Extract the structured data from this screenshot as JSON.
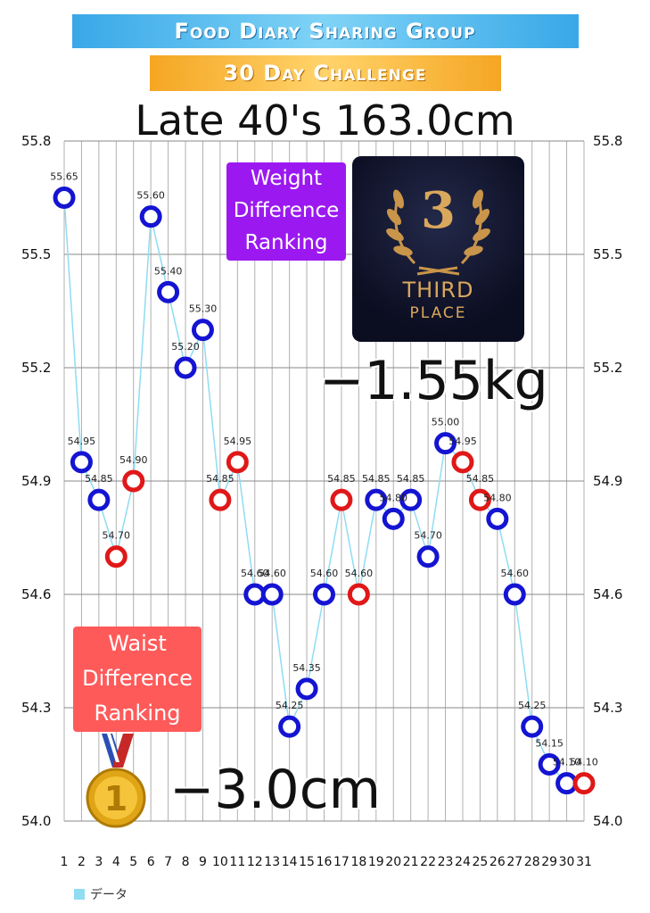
{
  "header": {
    "banner_1": "Food Diary Sharing Group",
    "banner_2": "30 Day Challenge",
    "subtitle": "Late 40's  163.0cm"
  },
  "badges": {
    "weight_ranking": [
      "Weight",
      "Difference",
      "Ranking"
    ],
    "waist_ranking": [
      "Waist",
      "Difference",
      "Ranking"
    ],
    "third_place_numeral": "3",
    "third_place_text": [
      "THIRD",
      "PLACE"
    ],
    "medal_numeral": "1"
  },
  "results": {
    "weight_difference": "−1.55kg",
    "waist_difference": "−3.0cm"
  },
  "legend": {
    "series_name": "データ"
  },
  "colors": {
    "line": "#8fdcf3",
    "marker_blue": "#1414d2",
    "marker_red": "#e01818",
    "grid": "#b0b0b0",
    "weight_badge": "#9b19f0",
    "waist_badge": "#ff5a5a"
  },
  "chart_data": {
    "type": "line",
    "x": [
      1,
      2,
      3,
      4,
      5,
      6,
      7,
      8,
      9,
      10,
      11,
      12,
      13,
      14,
      15,
      16,
      17,
      18,
      19,
      20,
      21,
      22,
      23,
      24,
      25,
      26,
      27,
      28,
      29,
      30,
      31
    ],
    "series": [
      {
        "name": "データ",
        "values": [
          55.65,
          54.95,
          54.85,
          54.7,
          54.9,
          55.6,
          55.4,
          55.2,
          55.3,
          54.85,
          54.95,
          54.6,
          54.6,
          54.25,
          54.35,
          54.6,
          54.85,
          54.6,
          54.85,
          54.8,
          54.85,
          54.7,
          55.0,
          54.95,
          54.85,
          54.8,
          54.6,
          54.25,
          54.15,
          54.1,
          54.1
        ],
        "marker_colors": [
          "blue",
          "blue",
          "blue",
          "red",
          "red",
          "blue",
          "blue",
          "blue",
          "blue",
          "red",
          "red",
          "blue",
          "blue",
          "blue",
          "blue",
          "blue",
          "red",
          "red",
          "blue",
          "blue",
          "blue",
          "blue",
          "blue",
          "red",
          "red",
          "blue",
          "blue",
          "blue",
          "blue",
          "blue",
          "red"
        ]
      }
    ],
    "data_labels": [
      "55.65",
      "54.95",
      "54.85",
      "54.70",
      "54.90",
      "55.60",
      "55.40",
      "55.20",
      "55.30",
      "54.85",
      "54.95",
      "54.60",
      "54.60",
      "54.25",
      "54.35",
      "54.60",
      "54.85",
      "54.60",
      "54.85",
      "54.80",
      "54.85",
      "54.70",
      "55.00",
      "54.95",
      "54.85",
      "54.80",
      "54.60",
      "54.25",
      "54.15",
      "54.10",
      "54.10"
    ],
    "yticks": [
      "54.0",
      "54.3",
      "54.6",
      "54.9",
      "55.2",
      "55.5",
      "55.8"
    ],
    "xticks": [
      "1",
      "2",
      "3",
      "4",
      "5",
      "6",
      "7",
      "8",
      "9",
      "10",
      "11",
      "12",
      "13",
      "14",
      "15",
      "16",
      "17",
      "18",
      "19",
      "20",
      "21",
      "22",
      "23",
      "24",
      "25",
      "26",
      "27",
      "28",
      "29",
      "30",
      "31"
    ],
    "ylim": [
      54.0,
      55.8
    ],
    "xlim": [
      1,
      31
    ],
    "grid": true,
    "legend_position": "bottom-left"
  }
}
